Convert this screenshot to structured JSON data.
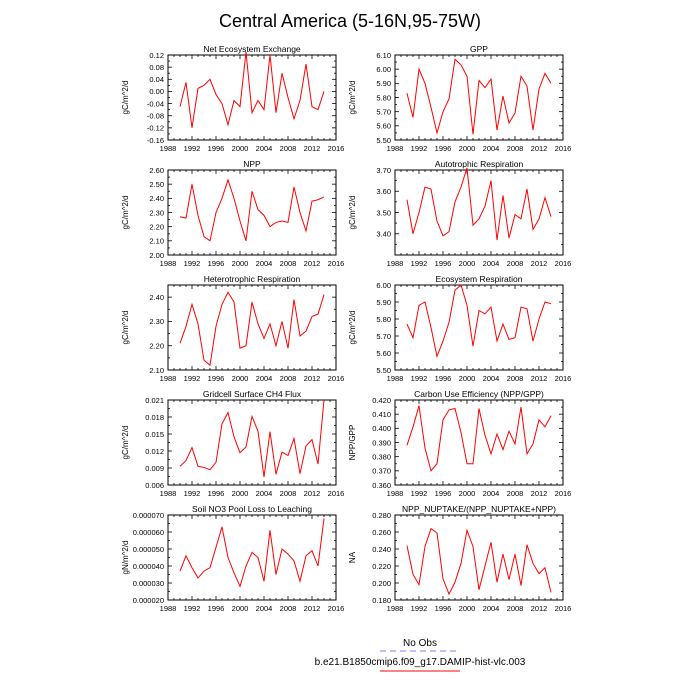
{
  "title": "Central America (5-16N,95-75W)",
  "legend": {
    "placement": "bottom-center",
    "entries": [
      {
        "label": "No Obs",
        "color": "#8080ff",
        "dashed": true
      },
      {
        "label": "b.e21.B1850cmip6.f09_g17.DAMIP-hist-vlc.003",
        "color": "#ff0000",
        "dashed": false
      }
    ]
  },
  "chart_data": [
    {
      "type": "line",
      "title": "Net Ecosystem Exchange",
      "ylabel": "gC/m^2/d",
      "xlim": [
        1988,
        2016
      ],
      "ylim": [
        -0.16,
        0.12
      ],
      "yticks": [
        -0.16,
        -0.12,
        -0.08,
        -0.04,
        0.0,
        0.04,
        0.08,
        0.12
      ],
      "ytick_labels": [
        "-0.16",
        "-0.12",
        "-0.08",
        "-0.04",
        "0.00",
        "0.04",
        "0.08",
        "0.12"
      ],
      "xticks": [
        1988,
        1992,
        1996,
        2000,
        2004,
        2008,
        2012,
        2016
      ],
      "x": [
        1990,
        1991,
        1992,
        1993,
        1994,
        1995,
        1996,
        1997,
        1998,
        1999,
        2000,
        2001,
        2002,
        2003,
        2004,
        2005,
        2006,
        2007,
        2008,
        2009,
        2010,
        2011,
        2012,
        2013,
        2014
      ],
      "series": [
        {
          "color": "#ff0000",
          "values": [
            -0.05,
            0.03,
            -0.12,
            0.01,
            0.02,
            0.04,
            -0.01,
            -0.04,
            -0.11,
            -0.03,
            -0.05,
            0.13,
            -0.07,
            -0.03,
            -0.06,
            0.12,
            -0.07,
            0.06,
            -0.02,
            -0.09,
            -0.03,
            0.09,
            -0.05,
            -0.06,
            0.0
          ]
        }
      ]
    },
    {
      "type": "line",
      "title": "GPP",
      "ylabel": "gC/m^2/d",
      "xlim": [
        1988,
        2016
      ],
      "ylim": [
        5.5,
        6.1
      ],
      "yticks": [
        5.5,
        5.6,
        5.7,
        5.8,
        5.9,
        6.0,
        6.1
      ],
      "ytick_labels": [
        "5.50",
        "5.60",
        "5.70",
        "5.80",
        "5.90",
        "6.00",
        "6.10"
      ],
      "xticks": [
        1988,
        1992,
        1996,
        2000,
        2004,
        2008,
        2012,
        2016
      ],
      "x": [
        1990,
        1991,
        1992,
        1993,
        1994,
        1995,
        1996,
        1997,
        1998,
        1999,
        2000,
        2001,
        2002,
        2003,
        2004,
        2005,
        2006,
        2007,
        2008,
        2009,
        2010,
        2011,
        2012,
        2013,
        2014
      ],
      "series": [
        {
          "color": "#ff0000",
          "values": [
            5.83,
            5.66,
            6.0,
            5.9,
            5.73,
            5.55,
            5.7,
            5.79,
            6.07,
            6.03,
            5.95,
            5.54,
            5.92,
            5.87,
            5.93,
            5.57,
            5.81,
            5.62,
            5.69,
            5.95,
            5.88,
            5.57,
            5.86,
            5.97,
            5.9
          ]
        }
      ]
    },
    {
      "type": "line",
      "title": "NPP",
      "ylabel": "gC/m^2/d",
      "xlim": [
        1988,
        2016
      ],
      "ylim": [
        2.0,
        2.6
      ],
      "yticks": [
        2.0,
        2.1,
        2.2,
        2.3,
        2.4,
        2.5,
        2.6
      ],
      "ytick_labels": [
        "2.00",
        "2.10",
        "2.20",
        "2.30",
        "2.40",
        "2.50",
        "2.60"
      ],
      "xticks": [
        1988,
        1992,
        1996,
        2000,
        2004,
        2008,
        2012,
        2016
      ],
      "x": [
        1990,
        1991,
        1992,
        1993,
        1994,
        1995,
        1996,
        1997,
        1998,
        1999,
        2000,
        2001,
        2002,
        2003,
        2004,
        2005,
        2006,
        2007,
        2008,
        2009,
        2010,
        2011,
        2012,
        2013,
        2014
      ],
      "series": [
        {
          "color": "#ff0000",
          "values": [
            2.27,
            2.26,
            2.5,
            2.28,
            2.13,
            2.1,
            2.3,
            2.4,
            2.53,
            2.4,
            2.24,
            2.1,
            2.45,
            2.32,
            2.28,
            2.2,
            2.23,
            2.24,
            2.23,
            2.48,
            2.3,
            2.17,
            2.38,
            2.39,
            2.41
          ]
        }
      ]
    },
    {
      "type": "line",
      "title": "Autotrophic Respiration",
      "ylabel": "gC/m^2/d",
      "xlim": [
        1988,
        2016
      ],
      "ylim": [
        3.3,
        3.7
      ],
      "yticks": [
        3.4,
        3.5,
        3.6,
        3.7
      ],
      "ytick_labels": [
        "3.40",
        "3.50",
        "3.60",
        "3.70"
      ],
      "xticks": [
        1988,
        1992,
        1996,
        2000,
        2004,
        2008,
        2012,
        2016
      ],
      "x": [
        1990,
        1991,
        1992,
        1993,
        1994,
        1995,
        1996,
        1997,
        1998,
        1999,
        2000,
        2001,
        2002,
        2003,
        2004,
        2005,
        2006,
        2007,
        2008,
        2009,
        2010,
        2011,
        2012,
        2013,
        2014
      ],
      "series": [
        {
          "color": "#ff0000",
          "values": [
            3.56,
            3.4,
            3.5,
            3.62,
            3.61,
            3.46,
            3.39,
            3.41,
            3.55,
            3.62,
            3.71,
            3.44,
            3.47,
            3.53,
            3.65,
            3.37,
            3.58,
            3.38,
            3.49,
            3.47,
            3.61,
            3.42,
            3.47,
            3.57,
            3.48
          ]
        }
      ]
    },
    {
      "type": "line",
      "title": "Heterotrophic Respiration",
      "ylabel": "gC/m^2/d",
      "xlim": [
        1988,
        2016
      ],
      "ylim": [
        2.1,
        2.45
      ],
      "yticks": [
        2.1,
        2.2,
        2.3,
        2.4
      ],
      "ytick_labels": [
        "2.10",
        "2.20",
        "2.30",
        "2.40"
      ],
      "xticks": [
        1988,
        1992,
        1996,
        2000,
        2004,
        2008,
        2012,
        2016
      ],
      "x": [
        1990,
        1991,
        1992,
        1993,
        1994,
        1995,
        1996,
        1997,
        1998,
        1999,
        2000,
        2001,
        2002,
        2003,
        2004,
        2005,
        2006,
        2007,
        2008,
        2009,
        2010,
        2011,
        2012,
        2013,
        2014
      ],
      "series": [
        {
          "color": "#ff0000",
          "values": [
            2.21,
            2.28,
            2.37,
            2.29,
            2.14,
            2.12,
            2.28,
            2.37,
            2.42,
            2.38,
            2.19,
            2.2,
            2.38,
            2.29,
            2.23,
            2.29,
            2.2,
            2.3,
            2.19,
            2.39,
            2.24,
            2.26,
            2.32,
            2.33,
            2.41
          ]
        }
      ]
    },
    {
      "type": "line",
      "title": "Ecosystem Respiration",
      "ylabel": "gC/m^2/d",
      "xlim": [
        1988,
        2016
      ],
      "ylim": [
        5.5,
        6.0
      ],
      "yticks": [
        5.5,
        5.6,
        5.7,
        5.8,
        5.9,
        6.0
      ],
      "ytick_labels": [
        "5.50",
        "5.60",
        "5.70",
        "5.80",
        "5.90",
        "6.00"
      ],
      "xticks": [
        1988,
        1992,
        1996,
        2000,
        2004,
        2008,
        2012,
        2016
      ],
      "x": [
        1990,
        1991,
        1992,
        1993,
        1994,
        1995,
        1996,
        1997,
        1998,
        1999,
        2000,
        2001,
        2002,
        2003,
        2004,
        2005,
        2006,
        2007,
        2008,
        2009,
        2010,
        2011,
        2012,
        2013,
        2014
      ],
      "series": [
        {
          "color": "#ff0000",
          "values": [
            5.77,
            5.69,
            5.88,
            5.9,
            5.75,
            5.58,
            5.67,
            5.78,
            5.97,
            6.0,
            5.88,
            5.64,
            5.85,
            5.83,
            5.87,
            5.67,
            5.77,
            5.68,
            5.69,
            5.87,
            5.86,
            5.67,
            5.8,
            5.9,
            5.89
          ]
        }
      ]
    },
    {
      "type": "line",
      "title": "Gridcell Surface CH4 Flux",
      "ylabel": "gC/m^2/d",
      "xlim": [
        1988,
        2016
      ],
      "ylim": [
        0.006,
        0.021
      ],
      "yticks": [
        0.006,
        0.009,
        0.012,
        0.015,
        0.018,
        0.021
      ],
      "ytick_labels": [
        "0.006",
        "0.009",
        "0.012",
        "0.015",
        "0.018",
        "0.021"
      ],
      "xticks": [
        1988,
        1992,
        1996,
        2000,
        2004,
        2008,
        2012,
        2016
      ],
      "x": [
        1990,
        1991,
        1992,
        1993,
        1994,
        1995,
        1996,
        1997,
        1998,
        1999,
        2000,
        2001,
        2002,
        2003,
        2004,
        2005,
        2006,
        2007,
        2008,
        2009,
        2010,
        2011,
        2012,
        2013,
        2014
      ],
      "series": [
        {
          "color": "#ff0000",
          "values": [
            0.0093,
            0.0103,
            0.0126,
            0.0093,
            0.0091,
            0.0087,
            0.01,
            0.0168,
            0.0188,
            0.0145,
            0.0117,
            0.0127,
            0.0181,
            0.0155,
            0.0074,
            0.0154,
            0.0079,
            0.0118,
            0.0112,
            0.0142,
            0.008,
            0.0129,
            0.014,
            0.0097,
            0.021
          ]
        }
      ]
    },
    {
      "type": "line",
      "title": "Carbon Use Efficiency (NPP/GPP)",
      "ylabel": "NPP/GPP",
      "xlim": [
        1988,
        2016
      ],
      "ylim": [
        0.36,
        0.42
      ],
      "yticks": [
        0.36,
        0.37,
        0.38,
        0.39,
        0.4,
        0.41,
        0.42
      ],
      "ytick_labels": [
        "0.360",
        "0.370",
        "0.380",
        "0.390",
        "0.400",
        "0.410",
        "0.420"
      ],
      "xticks": [
        1988,
        1992,
        1996,
        2000,
        2004,
        2008,
        2012,
        2016
      ],
      "x": [
        1990,
        1991,
        1992,
        1993,
        1994,
        1995,
        1996,
        1997,
        1998,
        1999,
        2000,
        2001,
        2002,
        2003,
        2004,
        2005,
        2006,
        2007,
        2008,
        2009,
        2010,
        2011,
        2012,
        2013,
        2014
      ],
      "series": [
        {
          "color": "#ff0000",
          "values": [
            0.388,
            0.401,
            0.416,
            0.386,
            0.37,
            0.375,
            0.406,
            0.413,
            0.414,
            0.397,
            0.375,
            0.375,
            0.414,
            0.395,
            0.382,
            0.396,
            0.385,
            0.398,
            0.389,
            0.415,
            0.382,
            0.389,
            0.406,
            0.401,
            0.409
          ]
        }
      ]
    },
    {
      "type": "line",
      "title": "Soil NO3 Pool Loss to Leaching",
      "ylabel": "gN/m^2/d",
      "xlim": [
        1988,
        2016
      ],
      "ylim": [
        2e-05,
        7e-05
      ],
      "yticks": [
        2e-05,
        3e-05,
        4e-05,
        5e-05,
        6e-05,
        7e-05
      ],
      "ytick_labels": [
        "0.000020",
        "0.000030",
        "0.000040",
        "0.000050",
        "0.000060",
        "0.000070"
      ],
      "xticks": [
        1988,
        1992,
        1996,
        2000,
        2004,
        2008,
        2012,
        2016
      ],
      "x": [
        1990,
        1991,
        1992,
        1993,
        1994,
        1995,
        1996,
        1997,
        1998,
        1999,
        2000,
        2001,
        2002,
        2003,
        2004,
        2005,
        2006,
        2007,
        2008,
        2009,
        2010,
        2011,
        2012,
        2013,
        2014
      ],
      "series": [
        {
          "color": "#ff0000",
          "values": [
            3.7e-05,
            4.6e-05,
            3.9e-05,
            3.3e-05,
            3.7e-05,
            3.9e-05,
            5.1e-05,
            6.3e-05,
            4.5e-05,
            3.6e-05,
            2.8e-05,
            4e-05,
            4.8e-05,
            4.5e-05,
            3.1e-05,
            6.1e-05,
            3.5e-05,
            5e-05,
            4.7e-05,
            4.3e-05,
            3.1e-05,
            4.6e-05,
            4.9e-05,
            4e-05,
            6.8e-05
          ]
        }
      ]
    },
    {
      "type": "line",
      "title": "NPP_NUPTAKE/(NPP_NUPTAKE+NPP)",
      "ylabel": "NA",
      "xlim": [
        1988,
        2016
      ],
      "ylim": [
        0.18,
        0.28
      ],
      "yticks": [
        0.18,
        0.2,
        0.22,
        0.24,
        0.26,
        0.28
      ],
      "ytick_labels": [
        "0.180",
        "0.200",
        "0.220",
        "0.240",
        "0.260",
        "0.280"
      ],
      "xticks": [
        1988,
        1992,
        1996,
        2000,
        2004,
        2008,
        2012,
        2016
      ],
      "x": [
        1990,
        1991,
        1992,
        1993,
        1994,
        1995,
        1996,
        1997,
        1998,
        1999,
        2000,
        2001,
        2002,
        2003,
        2004,
        2005,
        2006,
        2007,
        2008,
        2009,
        2010,
        2011,
        2012,
        2013,
        2014
      ],
      "series": [
        {
          "color": "#ff0000",
          "values": [
            0.244,
            0.21,
            0.198,
            0.243,
            0.264,
            0.259,
            0.205,
            0.187,
            0.201,
            0.223,
            0.262,
            0.243,
            0.192,
            0.22,
            0.248,
            0.201,
            0.234,
            0.204,
            0.234,
            0.197,
            0.245,
            0.223,
            0.211,
            0.218,
            0.189
          ]
        }
      ]
    }
  ]
}
